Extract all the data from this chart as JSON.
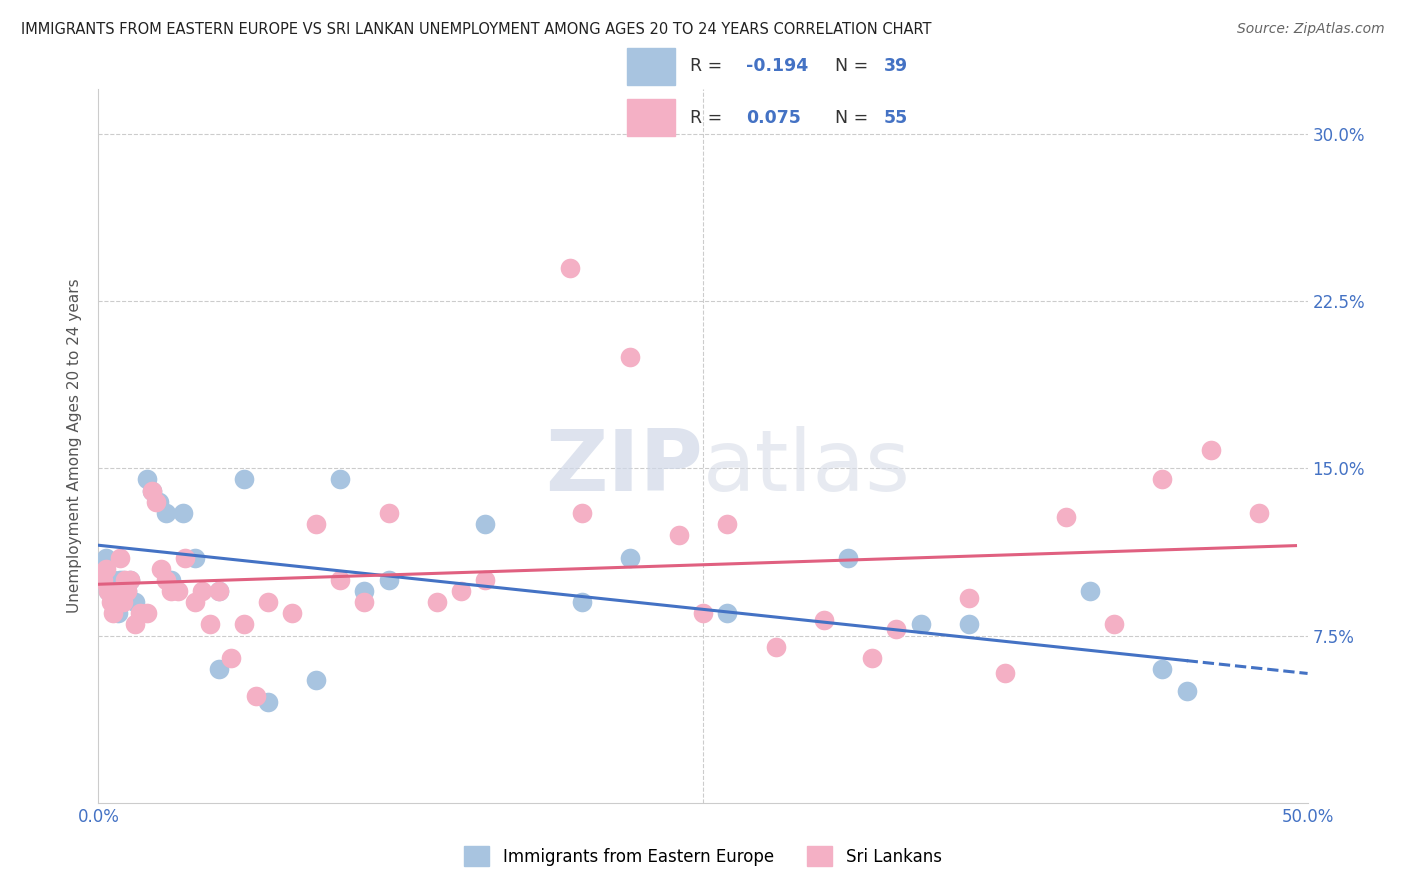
{
  "title": "IMMIGRANTS FROM EASTERN EUROPE VS SRI LANKAN UNEMPLOYMENT AMONG AGES 20 TO 24 YEARS CORRELATION CHART",
  "source": "Source: ZipAtlas.com",
  "ylabel": "Unemployment Among Ages 20 to 24 years",
  "xlim": [
    0.0,
    0.5
  ],
  "ylim": [
    0.0,
    0.32
  ],
  "blue_color": "#a8c4e0",
  "blue_line_color": "#4472c4",
  "pink_color": "#f4b0c5",
  "pink_line_color": "#e06080",
  "watermark_color": "#d0d8e8",
  "tick_label_color": "#4472c4",
  "blue_line_intercept": 0.1155,
  "blue_line_slope": -0.115,
  "pink_line_intercept": 0.098,
  "pink_line_slope": 0.035,
  "blue_x": [
    0.002,
    0.003,
    0.004,
    0.005,
    0.006,
    0.007,
    0.008,
    0.009,
    0.01,
    0.011,
    0.012,
    0.013,
    0.015,
    0.018,
    0.02,
    0.022,
    0.025,
    0.028,
    0.03,
    0.035,
    0.04,
    0.05,
    0.06,
    0.07,
    0.09,
    0.1,
    0.11,
    0.12,
    0.16,
    0.2,
    0.22,
    0.26,
    0.31,
    0.34,
    0.36,
    0.41,
    0.44,
    0.45,
    0.05
  ],
  "blue_y": [
    0.1,
    0.11,
    0.095,
    0.095,
    0.1,
    0.09,
    0.085,
    0.1,
    0.1,
    0.095,
    0.095,
    0.1,
    0.09,
    0.085,
    0.145,
    0.14,
    0.135,
    0.13,
    0.1,
    0.13,
    0.11,
    0.095,
    0.145,
    0.045,
    0.055,
    0.145,
    0.095,
    0.1,
    0.125,
    0.09,
    0.11,
    0.085,
    0.11,
    0.08,
    0.08,
    0.095,
    0.06,
    0.05,
    0.06
  ],
  "pink_x": [
    0.002,
    0.003,
    0.004,
    0.005,
    0.006,
    0.007,
    0.008,
    0.009,
    0.01,
    0.011,
    0.012,
    0.013,
    0.015,
    0.017,
    0.02,
    0.022,
    0.024,
    0.026,
    0.028,
    0.03,
    0.033,
    0.036,
    0.04,
    0.043,
    0.046,
    0.05,
    0.055,
    0.06,
    0.065,
    0.07,
    0.09,
    0.1,
    0.11,
    0.12,
    0.14,
    0.16,
    0.2,
    0.22,
    0.24,
    0.26,
    0.3,
    0.33,
    0.36,
    0.4,
    0.42,
    0.44,
    0.46,
    0.48,
    0.195,
    0.25,
    0.28,
    0.32,
    0.375,
    0.08,
    0.15
  ],
  "pink_y": [
    0.1,
    0.105,
    0.095,
    0.09,
    0.085,
    0.09,
    0.095,
    0.11,
    0.09,
    0.1,
    0.095,
    0.1,
    0.08,
    0.085,
    0.085,
    0.14,
    0.135,
    0.105,
    0.1,
    0.095,
    0.095,
    0.11,
    0.09,
    0.095,
    0.08,
    0.095,
    0.065,
    0.08,
    0.048,
    0.09,
    0.125,
    0.1,
    0.09,
    0.13,
    0.09,
    0.1,
    0.13,
    0.2,
    0.12,
    0.125,
    0.082,
    0.078,
    0.092,
    0.128,
    0.08,
    0.145,
    0.158,
    0.13,
    0.24,
    0.085,
    0.07,
    0.065,
    0.058,
    0.085,
    0.095
  ]
}
